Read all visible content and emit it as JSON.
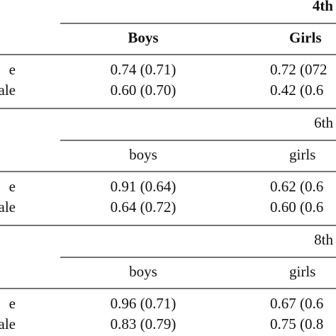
{
  "table": {
    "sections": [
      {
        "grade": "4th",
        "columns": [
          "Boys",
          "Girls"
        ],
        "rows": [
          [
            "e",
            "0.74 (0.71)",
            "0.72 (072"
          ],
          [
            "ale",
            "0.60 (0.70)",
            "0.42 (0.6"
          ]
        ]
      },
      {
        "grade": "6th",
        "columns": [
          "boys",
          "girls"
        ],
        "rows": [
          [
            "e",
            "0.91 (0.64)",
            "0.62 (0.6"
          ],
          [
            "ale",
            "0.64 (0.72)",
            "0.60 (0.6"
          ]
        ]
      },
      {
        "grade": "8th",
        "columns": [
          "boys",
          "girls"
        ],
        "rows": [
          [
            "e",
            "0.96 (0.71)",
            "0.67 (0.6"
          ],
          [
            "ale",
            "0.83 (0.79)",
            "0.75 (0.8"
          ]
        ]
      }
    ]
  }
}
